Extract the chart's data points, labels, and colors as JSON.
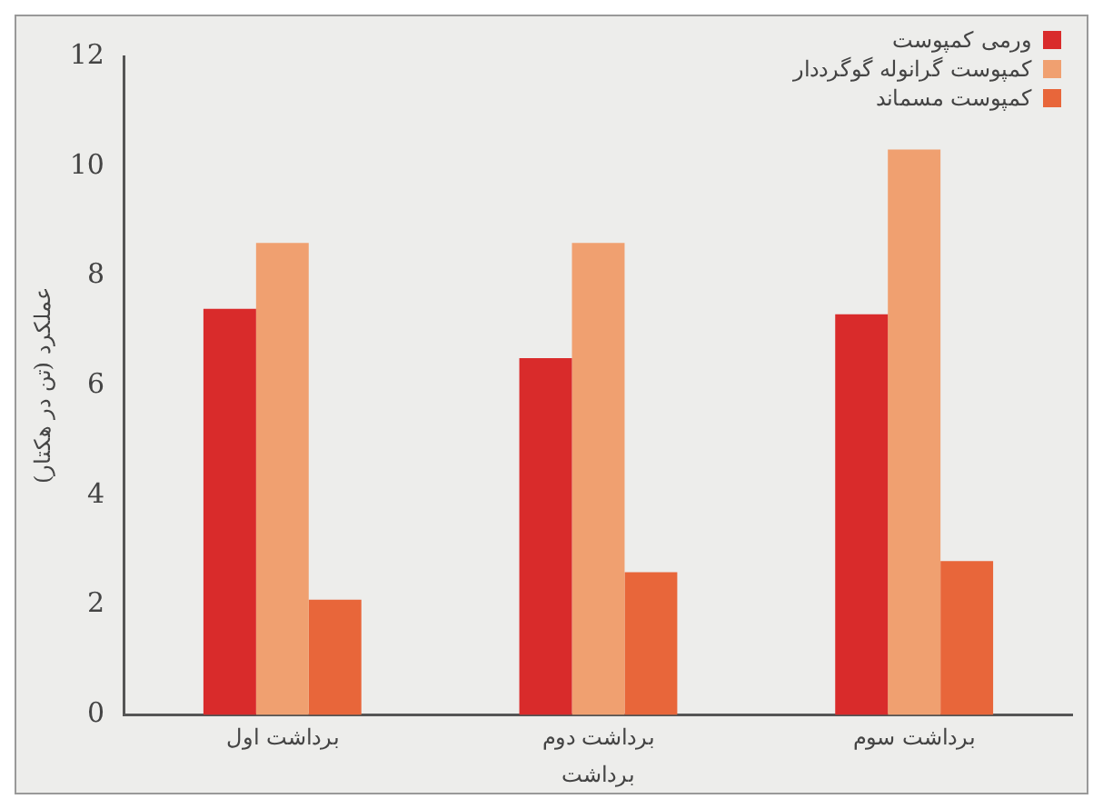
{
  "chart_data": {
    "type": "bar",
    "xlabel": "برداشت",
    "ylabel": "عملکرد (تن در هکتار)",
    "categories": [
      "برداشت اول",
      "برداشت دوم",
      "برداشت سوم"
    ],
    "series": [
      {
        "name": "ورمی کمپوست",
        "color": "#d92b2b",
        "values": [
          7.4,
          6.5,
          7.3
        ]
      },
      {
        "name": "کمپوست گرانوله گوگرددار",
        "color": "#f0a070",
        "values": [
          8.6,
          8.6,
          10.3
        ]
      },
      {
        "name": "کمپوست مسماند",
        "color": "#e8663a",
        "values": [
          2.1,
          2.6,
          2.8
        ]
      }
    ],
    "ylim": [
      0,
      12
    ],
    "yticks": [
      0,
      2,
      4,
      6,
      8,
      10,
      12
    ],
    "grid": false,
    "legend": "top right"
  }
}
